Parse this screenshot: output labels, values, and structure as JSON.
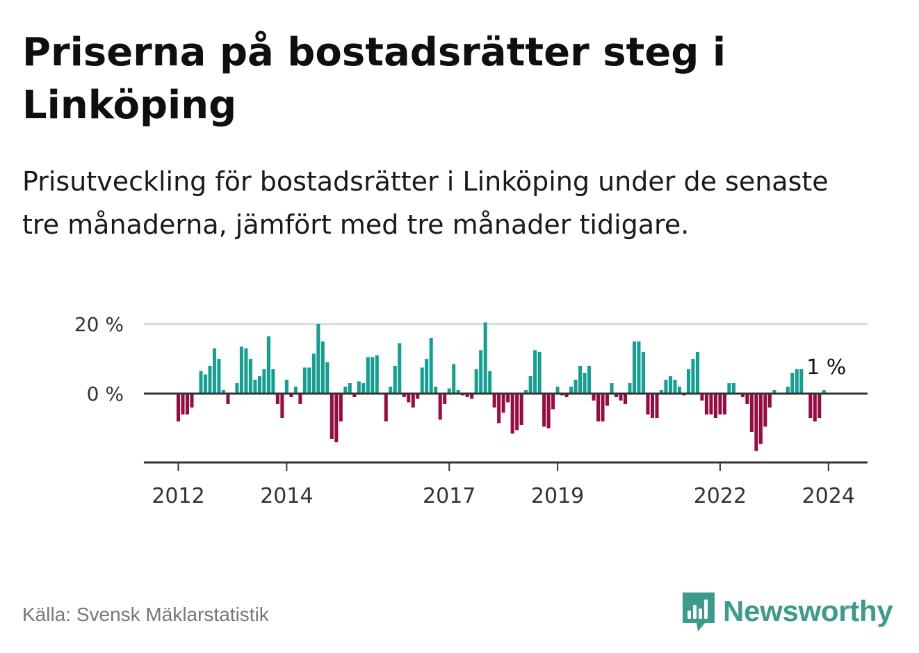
{
  "header": {
    "title": "Priserna på bostadsrätter steg i Linköping",
    "subtitle": "Prisutveckling för bostadsrätter i Linköping under de senaste tre månaderna, jämfört med tre månader tidigare."
  },
  "footer": {
    "source": "Källa: Svensk Mäklarstatistik",
    "brand": "Newsworthy",
    "brand_icon": "bar-chart-speech-bubble-icon"
  },
  "colors": {
    "positive": "#13a091",
    "negative": "#9b0a3f",
    "brand": "#3d9b8c",
    "grid": "#d9d9d9",
    "axis": "#333333"
  },
  "chart_data": {
    "type": "bar",
    "title": "Priserna på bostadsrätter steg i Linköping",
    "xlabel": "",
    "ylabel": "",
    "ylim": [
      -20,
      20
    ],
    "y_ticks": [
      {
        "value": 0,
        "label": "0 %"
      },
      {
        "value": 20,
        "label": "20 %"
      }
    ],
    "x_ticks": [
      {
        "label": "2012",
        "month_index": 0
      },
      {
        "label": "2014",
        "month_index": 24
      },
      {
        "label": "2017",
        "month_index": 60
      },
      {
        "label": "2019",
        "month_index": 84
      },
      {
        "label": "2022",
        "month_index": 120
      },
      {
        "label": "2024",
        "month_index": 144
      }
    ],
    "x_start": "2012-01",
    "end_label": "1 %",
    "series": [
      {
        "name": "Prisutveckling (%)",
        "unit": "%",
        "values": [
          -8,
          -6,
          -6,
          -4,
          0,
          6.5,
          5.5,
          8,
          13,
          10,
          1,
          -3,
          0,
          3,
          13.5,
          13,
          10,
          4,
          5,
          7,
          16.5,
          7,
          -3,
          -7,
          4,
          -1,
          2,
          -3,
          7.5,
          7.5,
          11.5,
          20,
          15,
          9,
          -13,
          -14,
          -8,
          2,
          3,
          -1,
          3.5,
          3,
          10.5,
          10.5,
          11,
          0,
          -8,
          2,
          8,
          14.5,
          -1,
          -2.5,
          -4,
          -1.5,
          7.5,
          10,
          16,
          2,
          -7.5,
          -3,
          1.5,
          8.5,
          1,
          -0.5,
          -1,
          -1.5,
          7,
          12.5,
          20.5,
          6.5,
          -4,
          -8.5,
          -5.5,
          -2.5,
          -11.5,
          -10.5,
          -9,
          1,
          5,
          12.5,
          12,
          -9.5,
          -10,
          -4.5,
          2,
          -0.5,
          -1,
          2,
          4,
          8,
          6,
          8,
          -2,
          -8,
          -8,
          -3.5,
          3,
          -1,
          -2,
          -3,
          3,
          15,
          15,
          12,
          -6,
          -7,
          -7,
          1,
          4,
          5,
          4,
          2,
          -0.5,
          7,
          10,
          12,
          -2,
          -6,
          -6,
          -7,
          -6,
          -6,
          3,
          3,
          0,
          -1,
          -3,
          -11,
          -16.5,
          -14.5,
          -9.5,
          -4,
          1,
          0,
          0,
          2,
          6,
          7,
          7,
          0,
          -7,
          -8,
          -7,
          1
        ]
      }
    ]
  }
}
